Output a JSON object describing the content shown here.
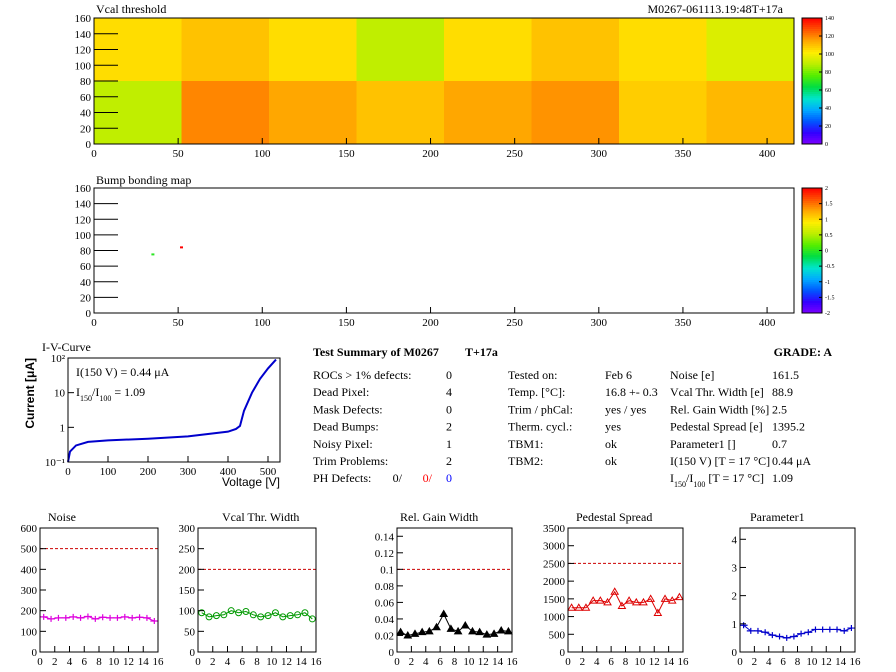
{
  "chart_data": [
    {
      "type": "heatmap",
      "title": "Vcal threshold",
      "subtitle": "M0267-061113.19:48T+17a",
      "xbins": [
        0,
        52,
        104,
        156,
        208,
        260,
        312,
        364,
        416
      ],
      "ybins": [
        0,
        80,
        160
      ],
      "values": [
        [
          90,
          120,
          115,
          110,
          115,
          118,
          108,
          112
        ],
        [
          105,
          110,
          105,
          90,
          105,
          110,
          105,
          95
        ]
      ],
      "xlim": [
        0,
        416
      ],
      "ylim": [
        0,
        160
      ],
      "xticks": [
        0,
        50,
        100,
        150,
        200,
        250,
        300,
        350,
        400
      ],
      "yticks": [
        0,
        20,
        40,
        60,
        80,
        100,
        120,
        140,
        160
      ],
      "zlim": [
        0,
        140
      ],
      "zticks": [
        0,
        20,
        40,
        60,
        80,
        100,
        120,
        140
      ],
      "colormap": [
        "#7f00ff",
        "#3300ff",
        "#0055ff",
        "#00aaff",
        "#00e5cc",
        "#00dd44",
        "#55ee00",
        "#bbee00",
        "#ffee00",
        "#ffaa00",
        "#ff5500",
        "#ff0000"
      ]
    },
    {
      "type": "heatmap",
      "title": "Bump bonding map",
      "x": [
        35,
        52
      ],
      "y": [
        75,
        84
      ],
      "values": [
        0,
        2
      ],
      "xlim": [
        0,
        416
      ],
      "ylim": [
        0,
        160
      ],
      "xticks": [
        0,
        50,
        100,
        150,
        200,
        250,
        300,
        350,
        400
      ],
      "yticks": [
        0,
        20,
        40,
        60,
        80,
        100,
        120,
        140,
        160
      ],
      "zlim": [
        -2,
        2
      ],
      "zticks": [
        -2,
        -1.5,
        -1,
        -0.5,
        0,
        0.5,
        1,
        1.5,
        2
      ],
      "colormap": [
        "#7f00ff",
        "#3300ff",
        "#0055ff",
        "#00aaff",
        "#00e5cc",
        "#00dd44",
        "#55ee00",
        "#bbee00",
        "#ffee00",
        "#ffaa00",
        "#ff5500",
        "#ff0000"
      ]
    },
    {
      "type": "line",
      "title": "I-V-Curve",
      "xlabel": "Voltage [V]",
      "ylabel": "Current [μA]",
      "annotations": [
        [
          "I(150 V) = 0.44 μA"
        ],
        [
          "I",
          "150",
          "/I",
          "100",
          "  =  1.09"
        ]
      ],
      "log_y": true,
      "color": "#0000cc",
      "marker": "none",
      "x": [
        0,
        5,
        20,
        50,
        100,
        200,
        300,
        400,
        420,
        430,
        440,
        460,
        480,
        500,
        520
      ],
      "values": [
        0.1,
        0.2,
        0.3,
        0.38,
        0.42,
        0.47,
        0.55,
        0.75,
        0.9,
        1.1,
        3,
        10,
        25,
        50,
        90
      ],
      "xlim": [
        0,
        530
      ],
      "ylim": [
        0.1,
        100
      ],
      "xticks": [
        0,
        100,
        200,
        300,
        400,
        500
      ],
      "yticks": [
        {
          "value": 0.1,
          "label": "10⁻¹"
        },
        1,
        10,
        {
          "value": 100,
          "label": "10²"
        }
      ]
    },
    {
      "type": "line",
      "title": "Noise",
      "color": "#dd00dd",
      "marker": "plus",
      "threshold": 500,
      "threshold_color": "#cc0000",
      "x": [
        0.5,
        1.5,
        2.5,
        3.5,
        4.5,
        5.5,
        6.5,
        7.5,
        8.5,
        9.5,
        10.5,
        11.5,
        12.5,
        13.5,
        14.5,
        15.5
      ],
      "values": [
        170,
        160,
        165,
        165,
        170,
        165,
        172,
        160,
        168,
        165,
        165,
        170,
        165,
        168,
        165,
        150
      ],
      "xlim": [
        0,
        16
      ],
      "ylim": [
        0,
        600
      ],
      "xticks": [
        0,
        2,
        4,
        6,
        8,
        10,
        12,
        14,
        16
      ],
      "yticks": [
        0,
        100,
        200,
        300,
        400,
        500,
        600
      ]
    },
    {
      "type": "line",
      "title": "Vcal Thr. Width",
      "color": "#009900",
      "marker": "circle",
      "threshold": 200,
      "threshold_color": "#cc0000",
      "x": [
        0.5,
        1.5,
        2.5,
        3.5,
        4.5,
        5.5,
        6.5,
        7.5,
        8.5,
        9.5,
        10.5,
        11.5,
        12.5,
        13.5,
        14.5,
        15.5
      ],
      "values": [
        95,
        85,
        88,
        90,
        100,
        95,
        98,
        90,
        85,
        88,
        95,
        85,
        88,
        90,
        95,
        80
      ],
      "xlim": [
        0,
        16
      ],
      "ylim": [
        0,
        300
      ],
      "xticks": [
        0,
        2,
        4,
        6,
        8,
        10,
        12,
        14,
        16
      ],
      "yticks": [
        0,
        50,
        100,
        150,
        200,
        250,
        300
      ]
    },
    {
      "type": "line",
      "title": "Rel. Gain Width",
      "color": "#000000",
      "marker": "triangle",
      "threshold": 0.1,
      "threshold_color": "#cc0000",
      "x": [
        0.5,
        1.5,
        2.5,
        3.5,
        4.5,
        5.5,
        6.5,
        7.5,
        8.5,
        9.5,
        10.5,
        11.5,
        12.5,
        13.5,
        14.5,
        15.5
      ],
      "values": [
        0.024,
        0.02,
        0.022,
        0.024,
        0.025,
        0.03,
        0.046,
        0.028,
        0.025,
        0.032,
        0.025,
        0.024,
        0.021,
        0.022,
        0.026,
        0.025
      ],
      "xlim": [
        0,
        16
      ],
      "ylim": [
        0,
        0.15
      ],
      "xticks": [
        0,
        2,
        4,
        6,
        8,
        10,
        12,
        14,
        16
      ],
      "yticks": [
        0,
        0.02,
        0.04,
        0.06,
        0.08,
        0.1,
        0.12,
        0.14
      ]
    },
    {
      "type": "line",
      "title": "Pedestal Spread",
      "color": "#dd0000",
      "marker": "opentriangle",
      "threshold": 2500,
      "threshold_color": "#cc0000",
      "x": [
        0.5,
        1.5,
        2.5,
        3.5,
        4.5,
        5.5,
        6.5,
        7.5,
        8.5,
        9.5,
        10.5,
        11.5,
        12.5,
        13.5,
        14.5,
        15.5
      ],
      "values": [
        1250,
        1250,
        1250,
        1450,
        1450,
        1400,
        1700,
        1300,
        1450,
        1400,
        1400,
        1500,
        1100,
        1500,
        1450,
        1550
      ],
      "xlim": [
        0,
        16
      ],
      "ylim": [
        0,
        3500
      ],
      "xticks": [
        0,
        2,
        4,
        6,
        8,
        10,
        12,
        14,
        16
      ],
      "yticks": [
        0,
        500,
        1000,
        1500,
        2000,
        2500,
        3000,
        3500
      ]
    },
    {
      "type": "line",
      "title": "Parameter1",
      "color": "#0000cc",
      "marker": "plus",
      "x": [
        0.5,
        1.5,
        2.5,
        3.5,
        4.5,
        5.5,
        6.5,
        7.5,
        8.5,
        9.5,
        10.5,
        11.5,
        12.5,
        13.5,
        14.5,
        15.5
      ],
      "values": [
        0.95,
        0.75,
        0.75,
        0.7,
        0.6,
        0.55,
        0.5,
        0.55,
        0.65,
        0.7,
        0.8,
        0.8,
        0.8,
        0.8,
        0.75,
        0.85
      ],
      "xlim": [
        0,
        16
      ],
      "ylim": [
        0,
        4.4
      ],
      "xticks": [
        0,
        2,
        4,
        6,
        8,
        10,
        12,
        14,
        16
      ],
      "yticks": [
        0,
        1,
        2,
        3,
        4
      ]
    }
  ],
  "summary": {
    "title": "Test Summary of M0267",
    "tag": "T+17a",
    "grade": "GRADE:  A",
    "defects": [
      [
        "ROCs > 1% defects:",
        "0"
      ],
      [
        "Dead Pixel:",
        "4"
      ],
      [
        "Mask Defects:",
        "0"
      ],
      [
        "Dead Bumps:",
        "2"
      ],
      [
        "Noisy Pixel:",
        "1"
      ],
      [
        "Trim Problems:",
        "2"
      ]
    ],
    "ph_defects": {
      "label": "PH Defects:",
      "values": [
        "0/",
        "0/",
        "0"
      ],
      "colors": [
        "#000000",
        "#ff0000",
        "#0000ff"
      ]
    },
    "conditions": [
      [
        "Tested on:",
        "Feb 6"
      ],
      [
        "Temp. [°C]:",
        "16.8 +- 0.3"
      ],
      [
        "Trim / phCal:",
        "yes / yes"
      ],
      [
        "Therm. cycl.:",
        "yes"
      ],
      [
        "TBM1:",
        "ok"
      ],
      [
        "TBM2:",
        "ok"
      ]
    ],
    "results": [
      {
        "label": [
          "Noise [e]"
        ],
        "value": "161.5"
      },
      {
        "label": [
          "Vcal Thr. Width [e]"
        ],
        "value": "88.9"
      },
      {
        "label": [
          "Rel. Gain Width [%]"
        ],
        "value": "2.5"
      },
      {
        "label": [
          "Pedestal Spread [e]"
        ],
        "value": "1395.2"
      },
      {
        "label": [
          "Parameter1 []"
        ],
        "value": "0.7"
      },
      {
        "label": [
          "I(150 V) [T = 17 °C]"
        ],
        "value": "0.44 μA"
      },
      {
        "label": [
          "I",
          "150",
          "/I",
          "100",
          "  [T = 17 °C]"
        ],
        "value": "1.09"
      }
    ]
  }
}
